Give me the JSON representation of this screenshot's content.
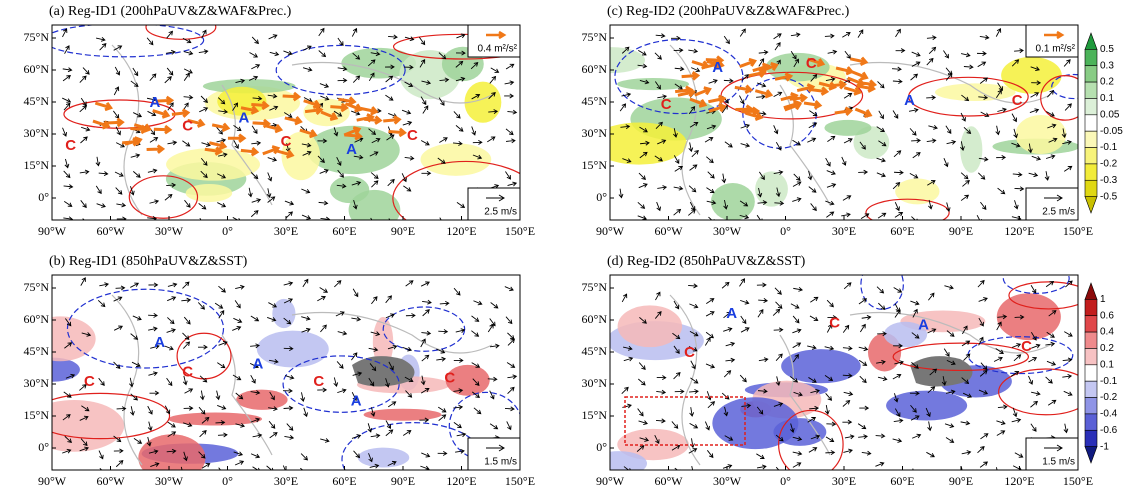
{
  "panels": [
    {
      "title": "(a) Reg-ID1 (200hPaUV&Z&WAF&Prec.)",
      "markers": [
        "C",
        "A",
        "C",
        "A",
        "C",
        "A",
        "C"
      ],
      "reference_vectors": [
        "0.4 m²/s²",
        "2.5 m/s"
      ]
    },
    {
      "title": "(b) Reg-ID1 (850hPaUV&Z&SST)",
      "markers": [
        "A",
        "C",
        "C",
        "A",
        "C",
        "A",
        "C"
      ],
      "reference_vectors": [
        "1.5 m/s"
      ]
    },
    {
      "title": "(c) Reg-ID2 (200hPaUV&Z&WAF&Prec.)",
      "markers": [
        "A",
        "C",
        "C",
        "A",
        "C"
      ],
      "reference_vectors": [
        "0.1 m²/s²",
        "2.5 m/s"
      ]
    },
    {
      "title": "(d) Reg-ID2 (850hPaUV&Z&SST)",
      "markers": [
        "A",
        "C",
        "C",
        "A",
        "C"
      ],
      "reference_vectors": [
        "1.5 m/s"
      ]
    }
  ],
  "lat_ticks": [
    "75°N",
    "60°N",
    "45°N",
    "30°N",
    "15°N",
    "0°"
  ],
  "lon_ticks": [
    "90°W",
    "60°W",
    "30°W",
    "0°",
    "30°E",
    "60°E",
    "90°E",
    "120°E",
    "150°E"
  ],
  "colorbars": [
    {
      "labels": [
        "0.5",
        "0.3",
        "0.2",
        "0.1",
        "0.05",
        "-0.05",
        "-0.1",
        "-0.2",
        "-0.3",
        "-0.5"
      ]
    },
    {
      "labels": [
        "1",
        "0.6",
        "0.4",
        "0.2",
        "0.1",
        "-0.1",
        "-0.2",
        "-0.4",
        "-0.6",
        "-1"
      ]
    }
  ]
}
